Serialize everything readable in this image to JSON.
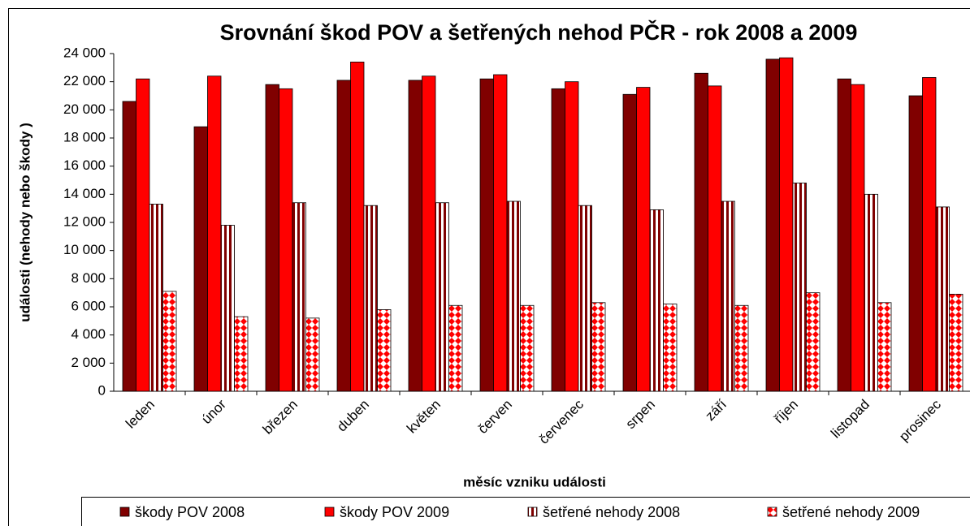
{
  "chart_data": {
    "type": "bar",
    "title": "Srovnání škod POV a šetřených nehod PČR - rok 2008 a 2009",
    "y_label": "události (nehody nebo škody )",
    "x_label": "měsíc vzniku události",
    "categories": [
      "leden",
      "únor",
      "březen",
      "duben",
      "květen",
      "červen",
      "červenec",
      "srpen",
      "září",
      "říjen",
      "listopad",
      "prosinec"
    ],
    "series": [
      {
        "name": "škody POV 2008",
        "color": "#800000",
        "fill": "solid",
        "values": [
          20600,
          18800,
          21800,
          22100,
          22100,
          22200,
          21500,
          21100,
          22600,
          23600,
          22200,
          21000
        ]
      },
      {
        "name": "škody POV 2009",
        "color": "#ff0000",
        "fill": "solid",
        "values": [
          22200,
          22400,
          21500,
          23400,
          22400,
          22500,
          22000,
          21600,
          21700,
          23700,
          21800,
          22300
        ]
      },
      {
        "name": "šetřené nehody 2008",
        "color": "#800000",
        "fill": "stripes",
        "values": [
          13300,
          11800,
          13400,
          13200,
          13400,
          13500,
          13200,
          12900,
          13500,
          14800,
          14000,
          13100
        ]
      },
      {
        "name": "šetřené nehody 2009",
        "color": "#ff0000",
        "fill": "diamonds",
        "values": [
          7100,
          5300,
          5200,
          5800,
          6100,
          6100,
          6300,
          6200,
          6100,
          7000,
          6300,
          6900
        ]
      }
    ],
    "ylim": [
      0,
      24000
    ],
    "yticks": [
      0,
      {
        "value": 2000,
        "label": "2 000"
      },
      {
        "value": 4000,
        "label": "4 000"
      },
      {
        "value": 6000,
        "label": "6 000"
      },
      {
        "value": 8000,
        "label": "8 000"
      },
      {
        "value": 10000,
        "label": "10 000"
      },
      {
        "value": 12000,
        "label": "12 000"
      },
      {
        "value": 14000,
        "label": "14 000"
      },
      {
        "value": 16000,
        "label": "16 000"
      },
      {
        "value": 18000,
        "label": "18 000"
      },
      {
        "value": 20000,
        "label": "20 000"
      },
      {
        "value": 22000,
        "label": "22 000"
      },
      {
        "value": 24000,
        "label": "24 000"
      }
    ],
    "grid": false,
    "legend": "bottom"
  }
}
